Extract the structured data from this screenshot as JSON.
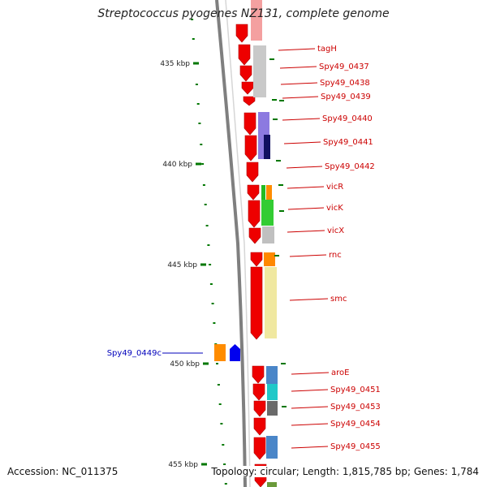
{
  "title": "Streptococcus pyogenes NZ131, complete genome",
  "footer": {
    "accession": "Accession: NC_011375",
    "stats": "Topology: circular; Length: 1,815,785 bp; Genes: 1,784"
  },
  "colors": {
    "gene_red": "#ee0000",
    "forward_label": "#cc0000",
    "reverse_label": "#0000bb",
    "ruler_tick": "#007700",
    "backbone": "#808080"
  },
  "ruler_labels": [
    "435 kbp",
    "440 kbp",
    "445 kbp",
    "450 kbp",
    "455 kbp"
  ],
  "genes": [
    {
      "label": "tagH",
      "strand": "forward"
    },
    {
      "label": "Spy49_0437",
      "strand": "forward"
    },
    {
      "label": "Spy49_0438",
      "strand": "forward"
    },
    {
      "label": "Spy49_0439",
      "strand": "forward"
    },
    {
      "label": "Spy49_0440",
      "strand": "forward"
    },
    {
      "label": "Spy49_0441",
      "strand": "forward"
    },
    {
      "label": "Spy49_0442",
      "strand": "forward"
    },
    {
      "label": "vicR",
      "strand": "forward"
    },
    {
      "label": "vicK",
      "strand": "forward"
    },
    {
      "label": "vicX",
      "strand": "forward"
    },
    {
      "label": "rnc",
      "strand": "forward"
    },
    {
      "label": "smc",
      "strand": "forward"
    },
    {
      "label": "Spy49_0449c",
      "strand": "reverse"
    },
    {
      "label": "aroE",
      "strand": "forward"
    },
    {
      "label": "Spy49_0451",
      "strand": "forward"
    },
    {
      "label": "Spy49_0453",
      "strand": "forward"
    },
    {
      "label": "Spy49_0454",
      "strand": "forward"
    },
    {
      "label": "Spy49_0455",
      "strand": "forward"
    }
  ]
}
